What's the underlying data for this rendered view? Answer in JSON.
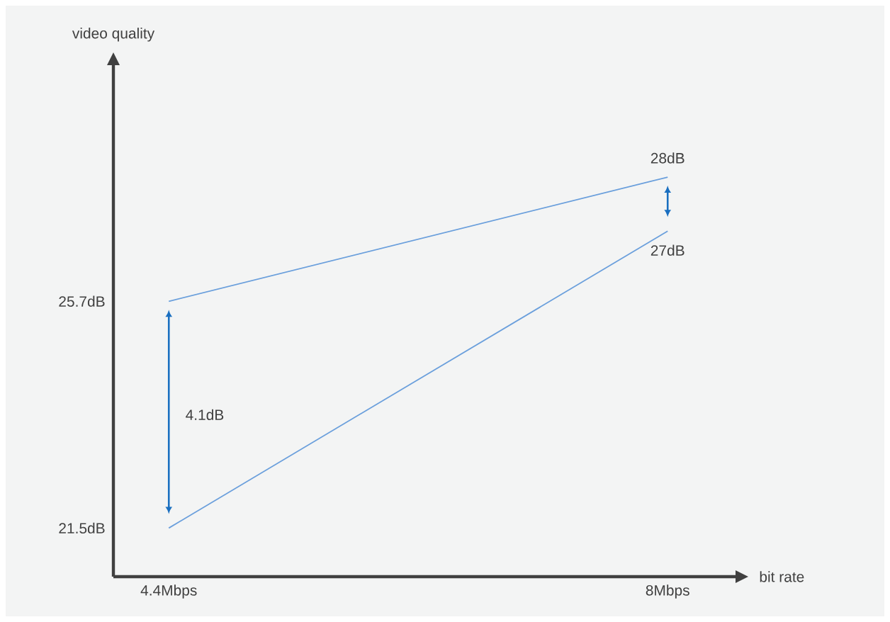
{
  "chart_data": {
    "type": "line",
    "xlabel": "bit rate",
    "ylabel": "video quality",
    "x": [
      4.4,
      8
    ],
    "series": [
      {
        "color": "#6a9fdc",
        "values": [
          25.7,
          28
        ],
        "value_labels": [
          null,
          "28dB"
        ]
      },
      {
        "color": "#6a9fdc",
        "values": [
          21.5,
          27
        ],
        "value_labels": [
          null,
          "27dB"
        ]
      }
    ],
    "xlim": [
      4,
      8.5
    ],
    "ylim": [
      20.6,
      30.1
    ],
    "xticks": [
      {
        "value": 4.4,
        "label": "4.4Mbps"
      },
      {
        "value": 8,
        "label": "8Mbps"
      }
    ],
    "yticks": [
      {
        "value": 21.5,
        "label": "21.5dB"
      },
      {
        "value": 25.7,
        "label": "25.7dB"
      }
    ],
    "annotations": [
      "4.1dB"
    ],
    "grid": false,
    "marker": "none",
    "line_style": "solid"
  }
}
